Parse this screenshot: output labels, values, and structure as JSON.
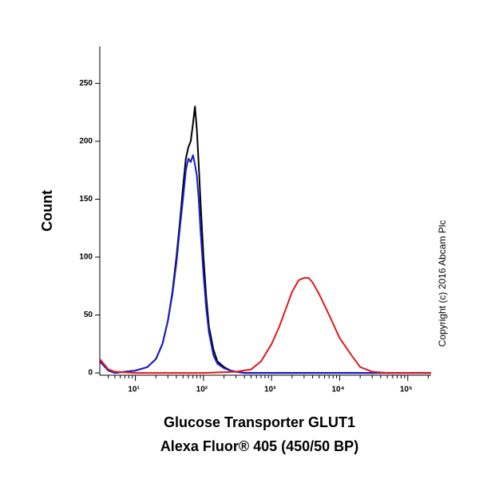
{
  "chart_data": {
    "type": "line",
    "x_label": [
      "Glucose Transporter GLUT1",
      "Alexa Fluor® 405 (450/50 BP)"
    ],
    "y_label": "Count",
    "annotation": "Copyright (c) 2016 Abcam Plc",
    "xscale": "log",
    "xlim": [
      3,
      220000
    ],
    "ylim": [
      -2,
      282
    ],
    "xticks": [
      {
        "value": 10,
        "label": "10¹"
      },
      {
        "value": 100,
        "label": "10²"
      },
      {
        "value": 1000,
        "label": "10³"
      },
      {
        "value": 10000,
        "label": "10⁴"
      },
      {
        "value": 100000,
        "label": "10⁵"
      }
    ],
    "xminorticks": [
      4,
      5,
      6,
      7,
      8,
      9,
      20,
      30,
      40,
      50,
      60,
      70,
      80,
      90,
      200,
      300,
      400,
      500,
      600,
      700,
      800,
      900,
      2000,
      3000,
      4000,
      5000,
      6000,
      7000,
      8000,
      9000,
      20000,
      30000,
      40000,
      50000,
      60000,
      70000,
      80000,
      90000,
      200000
    ],
    "yticks": [
      0,
      50,
      100,
      150,
      200,
      250
    ],
    "series": [
      {
        "color": "#000000",
        "x": [
          3,
          4,
          5,
          7,
          10,
          15,
          20,
          25,
          30,
          35,
          40,
          45,
          50,
          55,
          60,
          65,
          70,
          75,
          80,
          85,
          90,
          100,
          110,
          120,
          140,
          160,
          200,
          250,
          300,
          400,
          1000,
          10000,
          220000
        ],
        "values": [
          10,
          2,
          0,
          1,
          2,
          5,
          12,
          25,
          45,
          70,
          100,
          130,
          160,
          185,
          195,
          200,
          215,
          230,
          210,
          180,
          150,
          100,
          65,
          40,
          20,
          10,
          5,
          2,
          1,
          0,
          0,
          0,
          0
        ]
      },
      {
        "color": "#1a1acc",
        "x": [
          3,
          4,
          5,
          7,
          10,
          15,
          20,
          25,
          30,
          35,
          40,
          45,
          50,
          55,
          60,
          65,
          70,
          75,
          80,
          85,
          90,
          100,
          110,
          120,
          140,
          160,
          200,
          250,
          300,
          400,
          1000,
          10000,
          220000
        ],
        "values": [
          10,
          2,
          0,
          1,
          2,
          5,
          12,
          25,
          45,
          68,
          95,
          125,
          150,
          175,
          185,
          182,
          188,
          180,
          170,
          150,
          125,
          85,
          55,
          35,
          15,
          8,
          4,
          2,
          1,
          0,
          0,
          0,
          0
        ]
      },
      {
        "color": "#e01a1a",
        "x": [
          3,
          4,
          5,
          10,
          100,
          300,
          500,
          700,
          1000,
          1300,
          1500,
          2000,
          2500,
          3000,
          3500,
          4000,
          5000,
          7000,
          10000,
          15000,
          20000,
          30000,
          50000,
          220000
        ],
        "values": [
          12,
          3,
          1,
          0,
          0,
          1,
          3,
          10,
          25,
          40,
          50,
          70,
          80,
          82,
          82,
          78,
          68,
          50,
          30,
          15,
          5,
          1,
          0,
          0
        ]
      }
    ]
  }
}
